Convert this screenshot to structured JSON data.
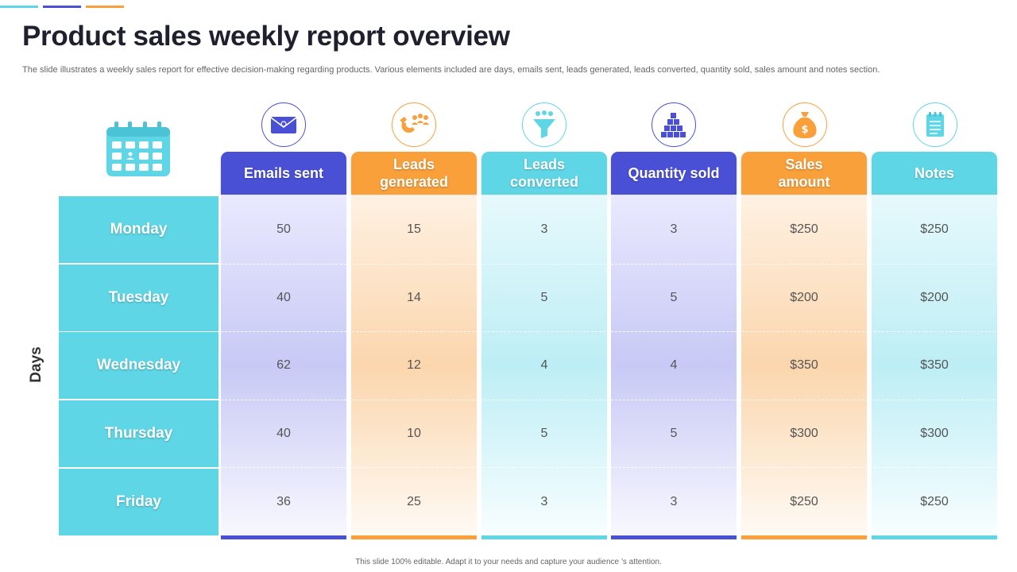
{
  "title": "Product sales weekly report overview",
  "subtitle": "The slide illustrates a weekly sales report for effective decision-making regarding products. Various elements included are days, emails sent, leads generated, leads converted, quantity sold, sales amount and notes section.",
  "days_label": "Days",
  "footer": "This slide 100% editable. Adapt it to your needs and capture your audience ’s attention.",
  "colors": {
    "blue": "#4a50d6",
    "orange": "#f9a03a",
    "cyan": "#5fd6e6"
  },
  "columns": [
    {
      "label": "Emails sent",
      "icon": "envelope-icon",
      "color": "#4a50d6"
    },
    {
      "label": "Leads generated",
      "icon": "magnet-people-icon",
      "color": "#f9a03a"
    },
    {
      "label": "Leads converted",
      "icon": "funnel-people-icon",
      "color": "#5fd6e6"
    },
    {
      "label": "Quantity sold",
      "icon": "stacked-boxes-icon",
      "color": "#4a50d6"
    },
    {
      "label": "Sales amount",
      "icon": "money-bag-icon",
      "color": "#f9a03a"
    },
    {
      "label": "Notes",
      "icon": "notepad-icon",
      "color": "#5fd6e6"
    }
  ],
  "rows": [
    {
      "day": "Monday",
      "values": [
        "50",
        "15",
        "3",
        "3",
        "$250",
        "$250"
      ]
    },
    {
      "day": "Tuesday",
      "values": [
        "40",
        "14",
        "5",
        "5",
        "$200",
        "$200"
      ]
    },
    {
      "day": "Wednesday",
      "values": [
        "62",
        "12",
        "4",
        "4",
        "$350",
        "$350"
      ]
    },
    {
      "day": "Thursday",
      "values": [
        "40",
        "10",
        "5",
        "5",
        "$300",
        "$300"
      ]
    },
    {
      "day": "Friday",
      "values": [
        "36",
        "25",
        "3",
        "3",
        "$250",
        "$250"
      ]
    }
  ]
}
